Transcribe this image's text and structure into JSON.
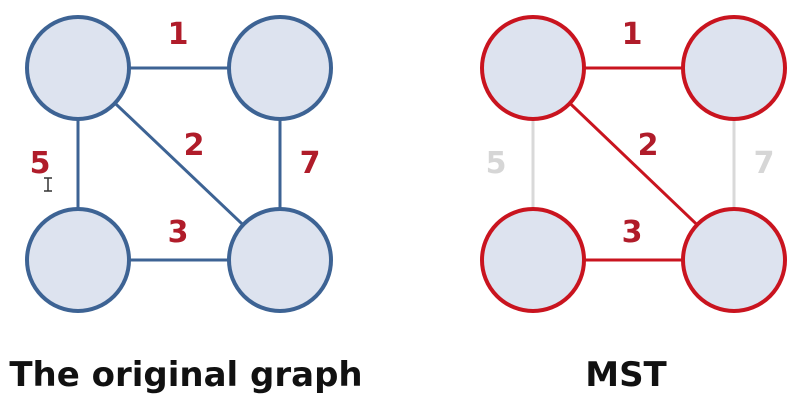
{
  "colors": {
    "original_stroke": "#3d6394",
    "node_fill": "#dde3ef",
    "weight_text": "#b01c2a",
    "mst_stroke": "#c9141f",
    "excluded_edge": "#d9d9d9",
    "excluded_text": "#d6d6d6",
    "caption_text": "#111111"
  },
  "original": {
    "caption": "The original graph",
    "edges": [
      {
        "from": "TL",
        "to": "TR",
        "weight": "1"
      },
      {
        "from": "TL",
        "to": "BR",
        "weight": "2"
      },
      {
        "from": "BL",
        "to": "BR",
        "weight": "3"
      },
      {
        "from": "TL",
        "to": "BL",
        "weight": "5"
      },
      {
        "from": "TR",
        "to": "BR",
        "weight": "7"
      }
    ]
  },
  "mst": {
    "caption": "MST",
    "edges": [
      {
        "from": "TL",
        "to": "TR",
        "weight": "1",
        "in_tree": true
      },
      {
        "from": "TL",
        "to": "BR",
        "weight": "2",
        "in_tree": true
      },
      {
        "from": "BL",
        "to": "BR",
        "weight": "3",
        "in_tree": true
      },
      {
        "from": "TL",
        "to": "BL",
        "weight": "5",
        "in_tree": false
      },
      {
        "from": "TR",
        "to": "BR",
        "weight": "7",
        "in_tree": false
      }
    ]
  }
}
